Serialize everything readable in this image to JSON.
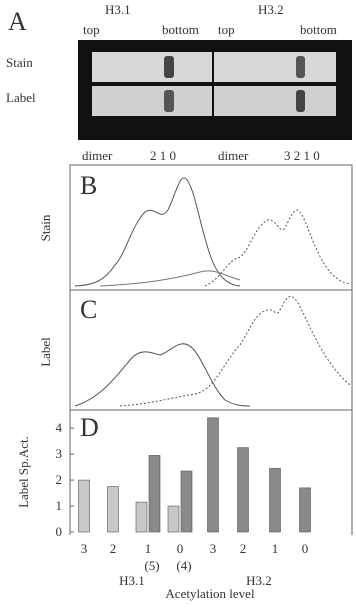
{
  "panel_a": {
    "letter": "A",
    "row_labels": [
      "Stain",
      "Label"
    ],
    "group_labels": [
      "H3.1",
      "H3.2"
    ],
    "lane_ends": [
      "top",
      "bottom",
      "top",
      "bottom"
    ],
    "band_labels": [
      "dimer",
      "2 1 0",
      "dimer",
      "3 2 1 0"
    ]
  },
  "panel_b": {
    "letter": "B",
    "ylabel": "Stain"
  },
  "panel_c": {
    "letter": "C",
    "ylabel": "Label"
  },
  "chart_data": {
    "type": "bar",
    "letter": "D",
    "ylabel": "Label Sp.Act.",
    "xlabel": "Acetylation level",
    "categories": [
      "3",
      "2",
      "1",
      "0",
      "3",
      "2",
      "1",
      "0"
    ],
    "sublabels": [
      null,
      null,
      "(5)",
      "(4)",
      null,
      null,
      null,
      null
    ],
    "groups": [
      "H3.1",
      "H3.2"
    ],
    "series": [
      {
        "color": "#c8c8c8",
        "values": [
          2.0,
          1.75,
          1.15,
          1.0,
          null,
          null,
          null,
          null
        ]
      },
      {
        "color": "#8a8a8a",
        "values": [
          null,
          null,
          2.95,
          2.35,
          4.4,
          3.25,
          2.45,
          1.7
        ]
      }
    ],
    "ylim": [
      0,
      4.7
    ],
    "yticks": [
      0,
      1,
      2,
      3,
      4
    ]
  }
}
